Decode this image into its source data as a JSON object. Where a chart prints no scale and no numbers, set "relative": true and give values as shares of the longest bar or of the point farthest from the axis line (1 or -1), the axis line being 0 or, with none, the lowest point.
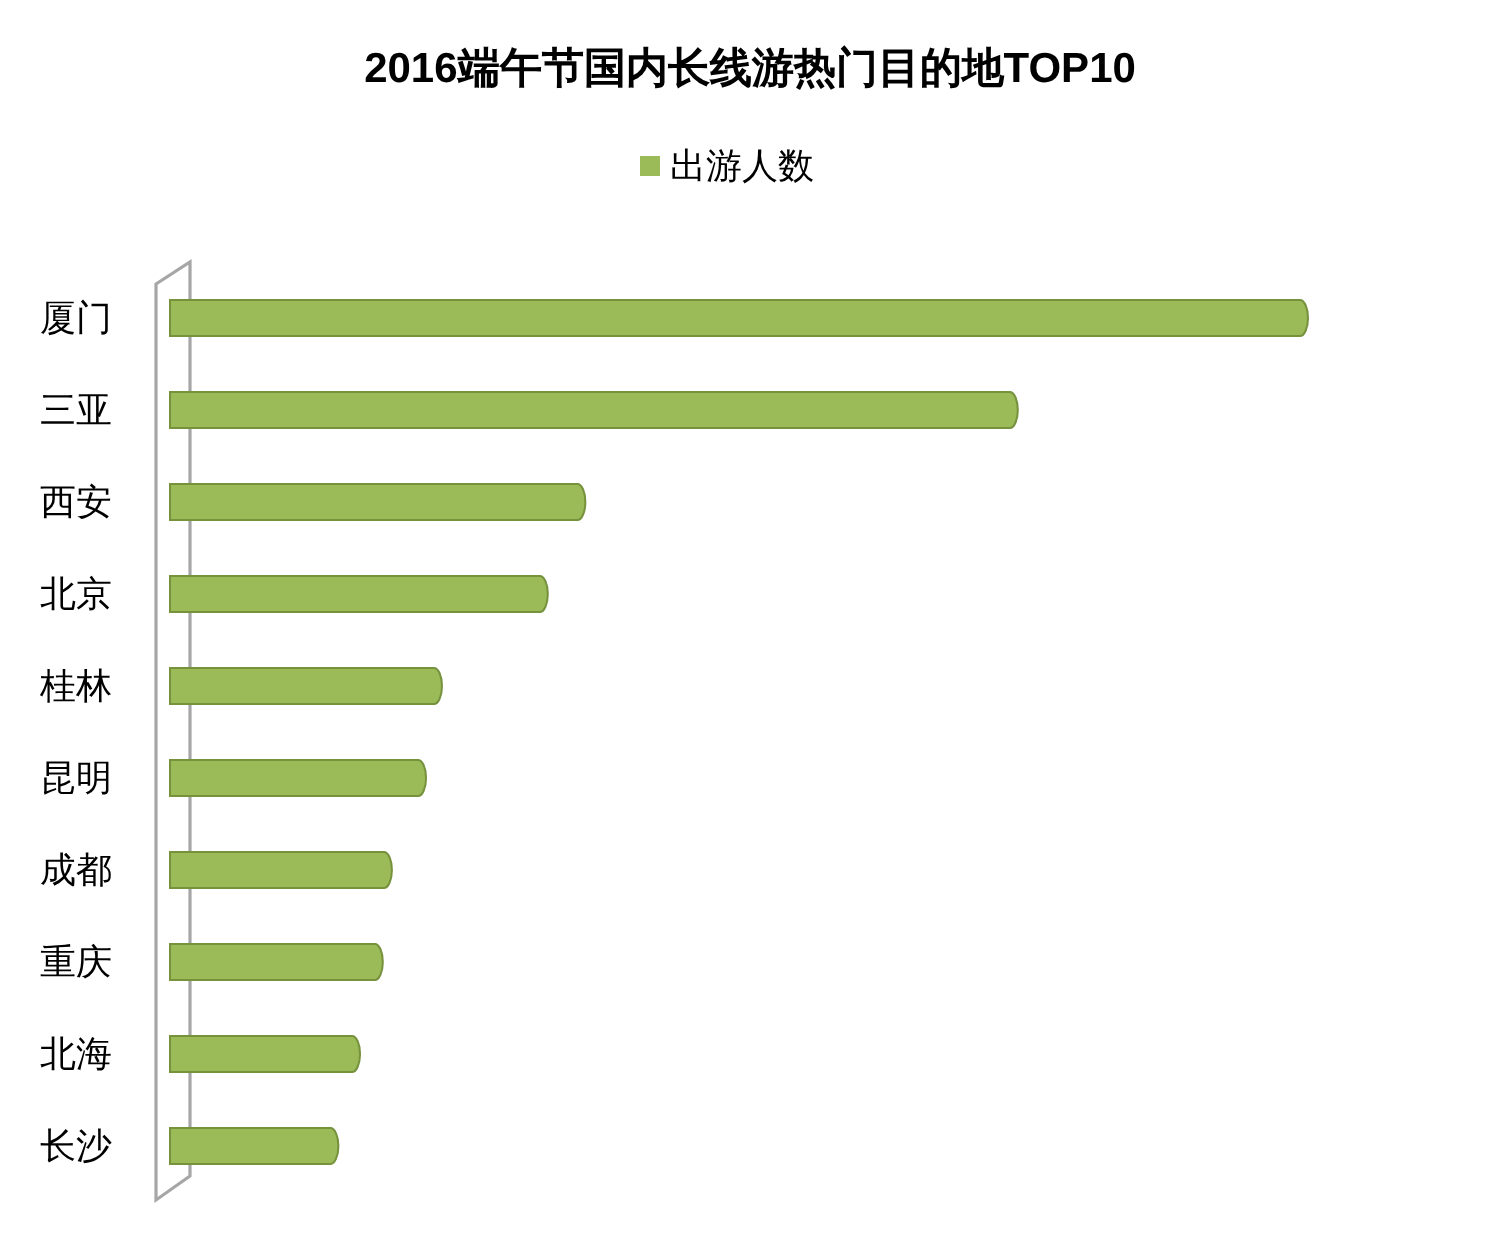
{
  "chart_data": {
    "type": "bar",
    "title": "2016端午节国内长线游热门目的地TOP10",
    "orientation": "horizontal",
    "relative": true,
    "legend": "top",
    "categories": [
      "厦门",
      "三亚",
      "西安",
      "北京",
      "桂林",
      "昆明",
      "成都",
      "重庆",
      "北海",
      "长沙"
    ],
    "series": [
      {
        "name": "出游人数",
        "color": "#9bbb59",
        "values": [
          1,
          0.745,
          0.365,
          0.332,
          0.239,
          0.225,
          0.195,
          0.187,
          0.167,
          0.148
        ]
      }
    ]
  }
}
